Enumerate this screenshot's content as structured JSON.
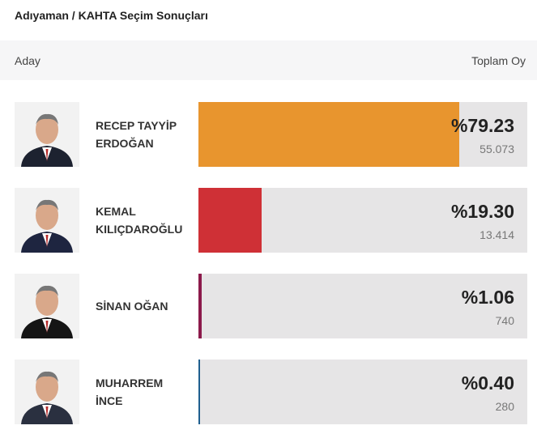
{
  "title": "Adıyaman / KAHTA Seçim Sonuçları",
  "header": {
    "left": "Aday",
    "right": "Toplam Oy"
  },
  "candidates": [
    {
      "name_line1": "RECEP TAYYİP",
      "name_line2": "ERDOĞAN",
      "percent_label": "%79.23",
      "percent": 79.23,
      "votes": "55.073",
      "color": "#e8952e",
      "suit": "#1d2230"
    },
    {
      "name_line1": "KEMAL",
      "name_line2": "KILIÇDAROĞLU",
      "percent_label": "%19.30",
      "percent": 19.3,
      "votes": "13.414",
      "color": "#cf3036",
      "suit": "#1e2540"
    },
    {
      "name_line1": "SİNAN OĞAN",
      "name_line2": "",
      "percent_label": "%1.06",
      "percent": 1.06,
      "votes": "740",
      "color": "#8c1a4b",
      "suit": "#151515"
    },
    {
      "name_line1": "MUHARREM",
      "name_line2": "İNCE",
      "percent_label": "%0.40",
      "percent": 0.4,
      "votes": "280",
      "color": "#1f5f8f",
      "suit": "#2a3040"
    }
  ]
}
